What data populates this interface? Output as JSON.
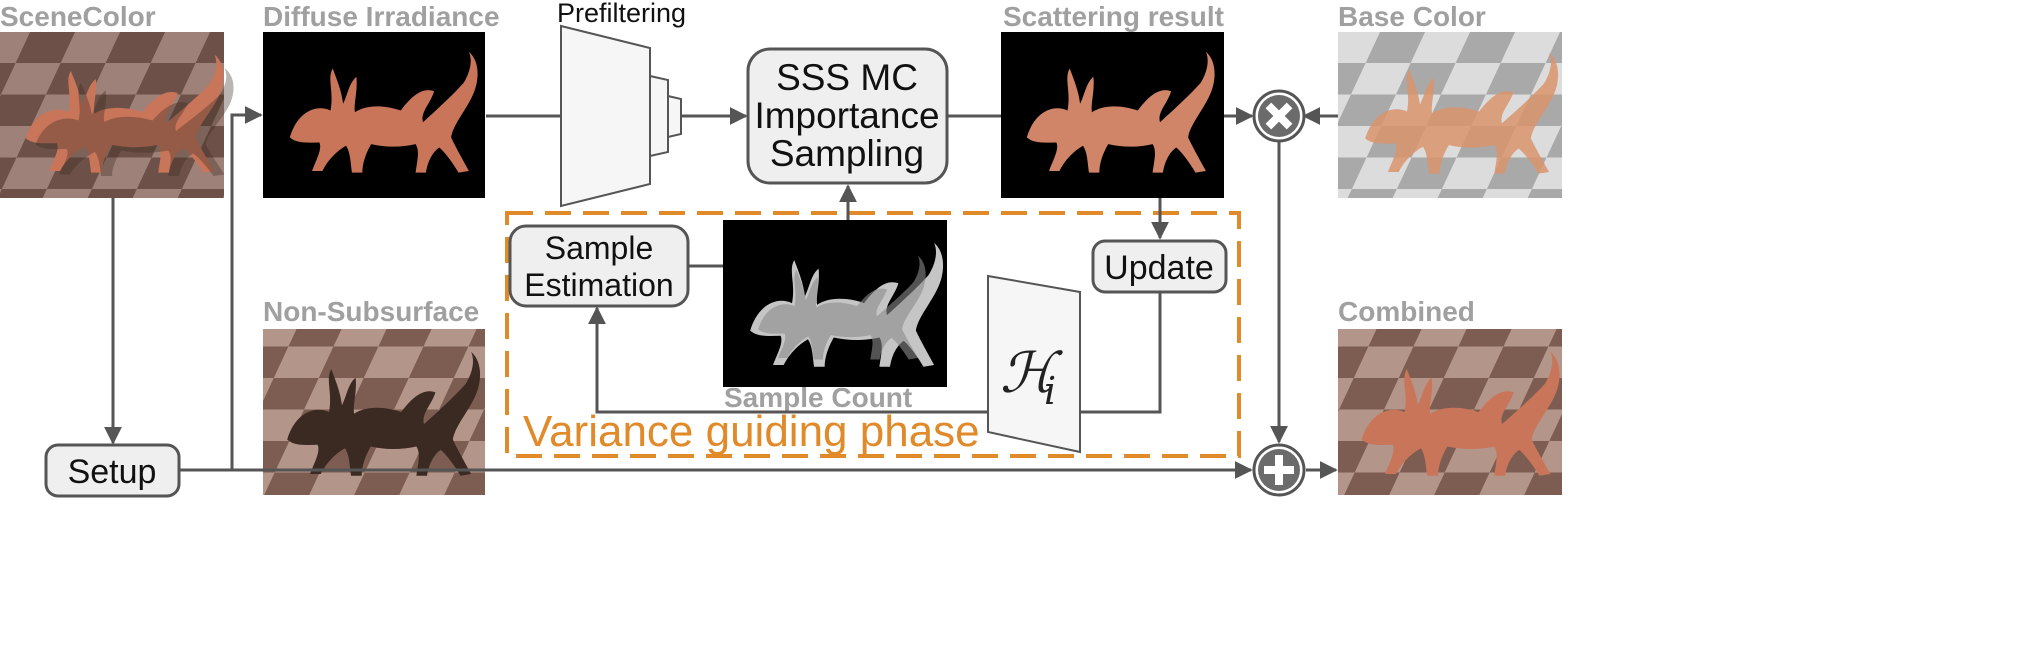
{
  "images": {
    "scene_color": "SceneColor",
    "diffuse_irradiance": "Diffuse Irradiance",
    "scattering_result": "Scattering result",
    "base_color": "Base Color",
    "non_subsurface": "Non-Subsurface",
    "combined": "Combined",
    "sample_count": "Sample Count"
  },
  "boxes": {
    "prefiltering": "Prefiltering",
    "sss_line1": "SSS MC",
    "sss_line2": "Importance",
    "sss_line3": "Sampling",
    "sample_est_line1": "Sample",
    "sample_est_line2": "Estimation",
    "update": "Update",
    "setup": "Setup",
    "histogram_symbol": "ℋ",
    "histogram_subscript": "i"
  },
  "phase": {
    "label": "Variance guiding phase"
  },
  "operators": {
    "multiply": "multiply-icon",
    "add": "add-icon"
  },
  "colors": {
    "phase_border": "#e08a2a",
    "title_gray": "#a0a0a0",
    "dragon_skin": "#c8755a",
    "dragon_dark": "#3a2a22"
  }
}
